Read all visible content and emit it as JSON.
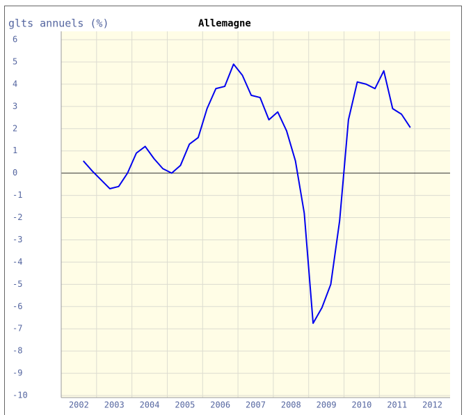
{
  "chart_data": {
    "type": "line",
    "title": "glts annuels (%)",
    "subtitle": "Allemagne",
    "xlim": [
      2002,
      2013
    ],
    "xticks": [
      {
        "value": 2002.5,
        "label": "2002"
      },
      {
        "value": 2003.5,
        "label": "2003"
      },
      {
        "value": 2004.5,
        "label": "2004"
      },
      {
        "value": 2005.5,
        "label": "2005"
      },
      {
        "value": 2006.5,
        "label": "2006"
      },
      {
        "value": 2007.5,
        "label": "2007"
      },
      {
        "value": 2008.5,
        "label": "2008"
      },
      {
        "value": 2009.5,
        "label": "2009"
      },
      {
        "value": 2010.5,
        "label": "2010"
      },
      {
        "value": 2011.5,
        "label": "2011"
      },
      {
        "value": 2012.5,
        "label": "2012"
      }
    ],
    "xgrid": [
      2003,
      2004,
      2005,
      2006,
      2007,
      2008,
      2009,
      2010,
      2011,
      2012
    ],
    "ylim": [
      -10,
      6
    ],
    "yticks": [
      -10,
      -9,
      -8,
      -7,
      -6,
      -5,
      -4,
      -3,
      -2,
      -1,
      0,
      1,
      2,
      3,
      4,
      5,
      6
    ],
    "grid": true,
    "x": [
      2002.625,
      2002.875,
      2003.125,
      2003.375,
      2003.625,
      2003.875,
      2004.125,
      2004.375,
      2004.625,
      2004.875,
      2005.125,
      2005.375,
      2005.625,
      2005.875,
      2006.125,
      2006.375,
      2006.625,
      2006.875,
      2007.125,
      2007.375,
      2007.625,
      2007.875,
      2008.125,
      2008.375,
      2008.625,
      2008.875,
      2009.125,
      2009.375,
      2009.625,
      2009.875,
      2010.125,
      2010.375,
      2010.625,
      2010.875,
      2011.125,
      2011.375,
      2011.625,
      2011.875
    ],
    "series": [
      {
        "color": "#0000ee",
        "values": [
          0.55,
          0.1,
          -0.3,
          -0.7,
          -0.6,
          0,
          0.9,
          1.2,
          0.65,
          0.2,
          0,
          0.35,
          1.3,
          1.6,
          2.9,
          3.8,
          3.9,
          4.9,
          4.4,
          3.5,
          3.4,
          2.4,
          2.75,
          1.9,
          0.55,
          -1.8,
          -6.75,
          -6.05,
          -5,
          -2.15,
          2.4,
          4.1,
          4.0,
          3.8,
          4.6,
          2.9,
          2.65,
          2.05
        ]
      }
    ]
  }
}
